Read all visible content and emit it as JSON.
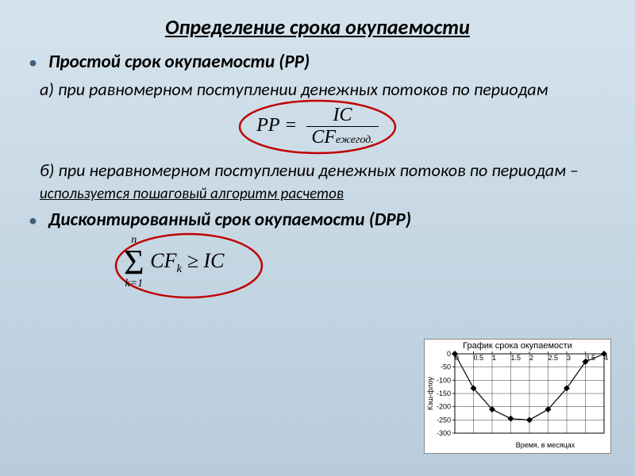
{
  "title": "Определение срока окупаемости",
  "bullets": {
    "pp_label": "Простой срок окупаемости (РР)",
    "a_text": "а) при равномерном поступлении денежных потоков по периодам",
    "b_text_prefix": "б) при неравномерном поступлении денежных потоков по периодам – ",
    "b_text_algo": "используется пошаговый алгоритм расчетов",
    "dpp_label": "Дисконтированный срок окупаемости (DPP)"
  },
  "formula1": {
    "lhs": "PP =",
    "num": "IC",
    "den_var": "CF",
    "den_sub": "ежегод.",
    "ellipse_color": "#c00000",
    "ellipse_stroke": 2.5
  },
  "formula2": {
    "sigma_top": "n",
    "sigma_bot": "k=1",
    "body_var": "CF",
    "body_sub": "k",
    "rel": " ≥ ",
    "rhs": "IC",
    "ellipse_color": "#c00000"
  },
  "chart": {
    "type": "line",
    "title": "График срока окупаемости",
    "xlabel": "Время, в месяцах",
    "ylabel": "Кэш-флоу",
    "x_ticks": [
      0,
      0.5,
      1,
      1.5,
      2,
      2.5,
      3,
      3.5,
      4
    ],
    "y_ticks": [
      0,
      -50,
      -100,
      -150,
      -200,
      -250,
      -300
    ],
    "xlim": [
      0,
      4
    ],
    "ylim": [
      -300,
      0
    ],
    "series": {
      "x": [
        0,
        0.5,
        1,
        1.5,
        2,
        2.5,
        3,
        3.5,
        4
      ],
      "y": [
        0,
        -130,
        -210,
        -245,
        -250,
        -210,
        -130,
        -30,
        0
      ]
    },
    "line_color": "#000000",
    "line_width": 1.2,
    "marker": "diamond",
    "marker_size": 4,
    "background_color": "#ffffff",
    "grid_color": "#000000",
    "axis_color": "#000000",
    "tick_fontsize": 9,
    "title_fontsize": 11,
    "label_fontsize": 9
  }
}
